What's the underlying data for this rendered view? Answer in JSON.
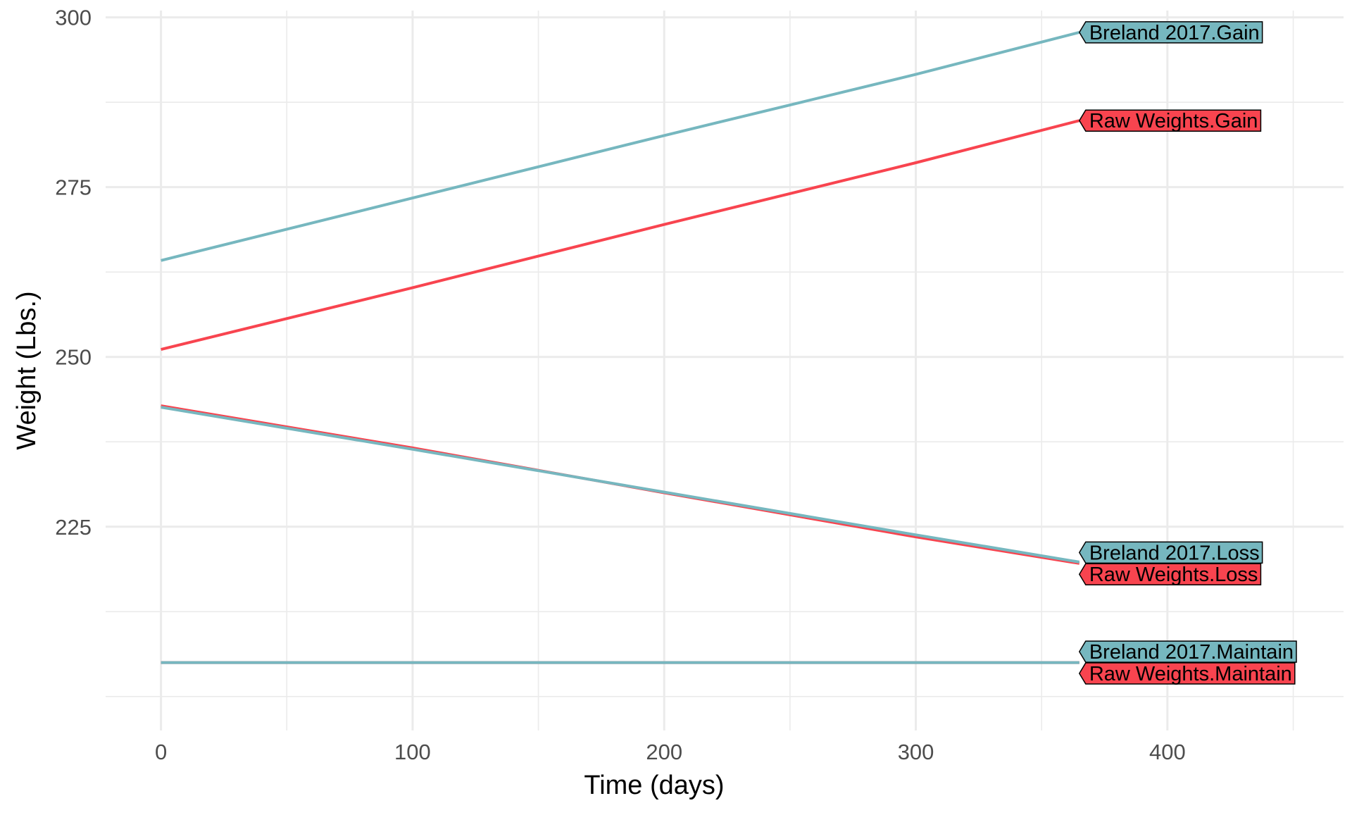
{
  "chart_data": {
    "type": "line",
    "title": "",
    "xlabel": "Time (days)",
    "ylabel": "Weight (Lbs.)",
    "xlim": [
      -22,
      470
    ],
    "ylim": [
      195,
      301
    ],
    "x_ticks": [
      0,
      100,
      200,
      300,
      400
    ],
    "y_ticks": [
      225,
      250,
      275,
      300
    ],
    "x_tick_labels": [
      "0",
      "100",
      "200",
      "300",
      "400"
    ],
    "y_tick_labels": [
      "225",
      "250",
      "275",
      "300"
    ],
    "grid": true,
    "legend": "none (direct end labels)",
    "colors": {
      "Raw Weights": "#f8444f",
      "Breland 2017": "#76b7bf"
    },
    "series": [
      {
        "name": "Raw Weights.Maintain",
        "group": "Raw Weights",
        "x": [
          0,
          365
        ],
        "y": [
          205,
          205
        ]
      },
      {
        "name": "Raw Weights.Loss",
        "group": "Raw Weights",
        "x": [
          0,
          100,
          200,
          300,
          365
        ],
        "y": [
          242.8,
          236.6,
          230.0,
          223.5,
          219.6
        ]
      },
      {
        "name": "Raw Weights.Gain",
        "group": "Raw Weights",
        "x": [
          0,
          100,
          200,
          300,
          365
        ],
        "y": [
          251.1,
          260.2,
          269.5,
          278.6,
          284.8
        ]
      },
      {
        "name": "Breland 2017.Maintain",
        "group": "Breland 2017",
        "x": [
          0,
          365
        ],
        "y": [
          205,
          205
        ]
      },
      {
        "name": "Breland 2017.Loss",
        "group": "Breland 2017",
        "x": [
          0,
          100,
          200,
          300,
          365
        ],
        "y": [
          242.6,
          236.4,
          230.1,
          223.8,
          219.8
        ]
      },
      {
        "name": "Breland 2017.Gain",
        "group": "Breland 2017",
        "x": [
          0,
          100,
          200,
          300,
          365
        ],
        "y": [
          264.2,
          273.4,
          282.6,
          291.6,
          297.8
        ]
      }
    ],
    "end_labels": [
      {
        "text": "Breland 2017.Gain",
        "series": "Breland 2017.Gain",
        "label_y": 297.8
      },
      {
        "text": "Raw Weights.Gain",
        "series": "Raw Weights.Gain",
        "label_y": 284.8
      },
      {
        "text": "Breland 2017.Loss",
        "series": "Breland 2017.Loss",
        "label_y": 221.2
      },
      {
        "text": "Raw Weights.Loss",
        "series": "Raw Weights.Loss",
        "label_y": 218.0
      },
      {
        "text": "Breland 2017.Maintain",
        "series": "Breland 2017.Maintain",
        "label_y": 206.6
      },
      {
        "text": "Raw Weights.Maintain",
        "series": "Raw Weights.Maintain",
        "label_y": 203.4
      }
    ]
  }
}
